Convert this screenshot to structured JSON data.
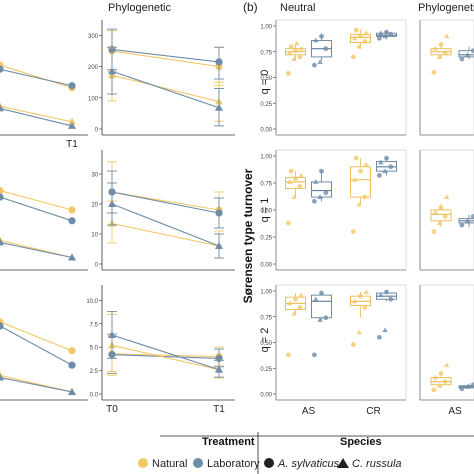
{
  "figure": {
    "panel_b_label": "(b)",
    "y_axis_title": "Sørensen type turnover",
    "column_titles": [
      "Phylogenetic",
      "Neutral",
      "Phylogenetic"
    ],
    "q_labels": [
      "q = 0",
      "q = 1",
      "q = 2"
    ],
    "colors": {
      "natural": "#F2C867",
      "laboratory": "#6E8CA8",
      "axis": "#333333",
      "box_natural": "#E9B94E",
      "box_lab": "#5F7E9C"
    }
  },
  "legend": {
    "treatment_title": "Treatment",
    "species_title": "Species",
    "natural_label": "Natural",
    "laboratory_label": "Laboratory",
    "species1_label": "A. sylvaticus",
    "species2_label": "C. russula"
  },
  "chart_data": [
    {
      "type": "line",
      "panel": "a-left-q0",
      "x": [
        "T0",
        "T1"
      ],
      "xtick_labels": [
        "",
        "T1"
      ],
      "ylim": [
        0,
        1
      ],
      "series": [
        {
          "treatment": "Natural",
          "species": "A. sylvaticus",
          "values": [
            0.62,
            0.4
          ]
        },
        {
          "treatment": "Laboratory",
          "species": "A. sylvaticus",
          "values": [
            0.58,
            0.42
          ]
        },
        {
          "treatment": "Natural",
          "species": "C. russula",
          "values": [
            0.22,
            0.07
          ]
        },
        {
          "treatment": "Laboratory",
          "species": "C. russula",
          "values": [
            0.2,
            0.03
          ]
        }
      ]
    },
    {
      "type": "line",
      "panel": "a-phylo-q0",
      "x": [
        "T0",
        "T1"
      ],
      "ylim": [
        0,
        330
      ],
      "yticks": [
        0,
        100,
        200,
        300
      ],
      "series": [
        {
          "treatment": "Natural",
          "species": "A. sylvaticus",
          "values": [
            250,
            200
          ],
          "err": [
            [
              185,
              315
            ],
            [
              140,
              262
            ]
          ]
        },
        {
          "treatment": "Laboratory",
          "species": "A. sylvaticus",
          "values": [
            255,
            215
          ],
          "err": [
            [
              190,
              320
            ],
            [
              160,
              262
            ]
          ]
        },
        {
          "treatment": "Natural",
          "species": "C. russula",
          "values": [
            172,
            88
          ],
          "err": [
            [
              90,
              260
            ],
            [
              25,
              150
            ]
          ]
        },
        {
          "treatment": "Laboratory",
          "species": "C. russula",
          "values": [
            185,
            68
          ],
          "err": [
            [
              112,
              262
            ],
            [
              10,
              130
            ]
          ]
        }
      ]
    },
    {
      "type": "line",
      "panel": "a-left-q1",
      "x": [
        "T0",
        "T1"
      ],
      "ylim": [
        0,
        1
      ],
      "series": [
        {
          "treatment": "Natural",
          "species": "A. sylvaticus",
          "values": [
            0.68,
            0.5
          ]
        },
        {
          "treatment": "Laboratory",
          "species": "A. sylvaticus",
          "values": [
            0.62,
            0.4
          ]
        },
        {
          "treatment": "Natural",
          "species": "C. russula",
          "values": [
            0.22,
            0.06
          ]
        },
        {
          "treatment": "Laboratory",
          "species": "C. russula",
          "values": [
            0.2,
            0.06
          ]
        }
      ]
    },
    {
      "type": "line",
      "panel": "a-phylo-q1",
      "x": [
        "T0",
        "T1"
      ],
      "ylim": [
        0,
        36
      ],
      "yticks": [
        0,
        10,
        20,
        30
      ],
      "series": [
        {
          "treatment": "Natural",
          "species": "A. sylvaticus",
          "values": [
            24,
            18
          ],
          "err": [
            [
              17,
              34
            ],
            [
              12,
              24
            ]
          ]
        },
        {
          "treatment": "Laboratory",
          "species": "A. sylvaticus",
          "values": [
            24,
            17
          ],
          "err": [
            [
              17,
              31
            ],
            [
              12,
              22
            ]
          ]
        },
        {
          "treatment": "Natural",
          "species": "C. russula",
          "values": [
            13.5,
            6
          ],
          "err": [
            [
              7,
              21
            ],
            [
              2,
              11
            ]
          ]
        },
        {
          "treatment": "Laboratory",
          "species": "C. russula",
          "values": [
            20,
            6
          ],
          "err": [
            [
              13,
              27
            ],
            [
              2,
              10
            ]
          ]
        }
      ]
    },
    {
      "type": "line",
      "panel": "a-left-q2",
      "x": [
        "T0",
        "T1"
      ],
      "ylim": [
        0,
        1
      ],
      "series": [
        {
          "treatment": "Natural",
          "species": "A. sylvaticus",
          "values": [
            0.7,
            0.42
          ]
        },
        {
          "treatment": "Laboratory",
          "species": "A. sylvaticus",
          "values": [
            0.66,
            0.28
          ]
        },
        {
          "treatment": "Natural",
          "species": "C. russula",
          "values": [
            0.18,
            0.02
          ]
        },
        {
          "treatment": "Laboratory",
          "species": "C. russula",
          "values": [
            0.16,
            0.02
          ]
        }
      ]
    },
    {
      "type": "line",
      "panel": "a-phylo-q2",
      "x": [
        "T0",
        "T1"
      ],
      "xtick_labels": [
        "T0",
        "T1"
      ],
      "ylim": [
        0,
        11
      ],
      "yticks": [
        0.0,
        2.5,
        5.0,
        7.5,
        10.0
      ],
      "series": [
        {
          "treatment": "Natural",
          "species": "A. sylvaticus",
          "values": [
            4.3,
            4.0
          ],
          "err": [
            [
              2.4,
              6.2
            ],
            [
              3.0,
              5.0
            ]
          ]
        },
        {
          "treatment": "Laboratory",
          "species": "A. sylvaticus",
          "values": [
            4.2,
            3.8
          ],
          "err": [
            [
              2.2,
              6.4
            ],
            [
              2.9,
              4.8
            ]
          ]
        },
        {
          "treatment": "Natural",
          "species": "C. russula",
          "values": [
            5.2,
            2.6
          ],
          "err": [
            [
              2.0,
              8.5
            ],
            [
              1.7,
              3.6
            ]
          ]
        },
        {
          "treatment": "Laboratory",
          "species": "C. russula",
          "values": [
            6.3,
            2.6
          ],
          "err": [
            [
              3.8,
              8.8
            ],
            [
              1.8,
              3.6
            ]
          ]
        }
      ]
    },
    {
      "type": "box",
      "panel": "b-neutral-q0",
      "categories": [
        "AS",
        "CR"
      ],
      "ylim": [
        0,
        1
      ],
      "yticks": [
        0.0,
        0.25,
        0.5,
        0.75,
        1.0
      ],
      "series": [
        {
          "treatment": "Natural",
          "boxes": [
            [
              0.66,
              0.72,
              0.75,
              0.78,
              0.83
            ],
            [
              0.78,
              0.84,
              0.89,
              0.92,
              0.97
            ]
          ],
          "points": [
            [
              0.54,
              0.68,
              0.7,
              0.74,
              0.76,
              0.78,
              0.8,
              0.83
            ],
            [
              0.7,
              0.8,
              0.85,
              0.88,
              0.9,
              0.93,
              0.96
            ]
          ]
        },
        {
          "treatment": "Laboratory",
          "boxes": [
            [
              0.66,
              0.7,
              0.78,
              0.86,
              0.92
            ],
            [
              0.87,
              0.9,
              0.91,
              0.93,
              0.95
            ]
          ],
          "points": [
            [
              0.62,
              0.65,
              0.78,
              0.86,
              0.9
            ],
            [
              0.88,
              0.9,
              0.92,
              0.93,
              0.94
            ]
          ]
        }
      ]
    },
    {
      "type": "box",
      "panel": "b-neutral-q1",
      "categories": [
        "AS",
        "CR"
      ],
      "ylim": [
        0,
        1
      ],
      "yticks": [
        0.0,
        0.25,
        0.5,
        0.75,
        1.0
      ],
      "series": [
        {
          "treatment": "Natural",
          "boxes": [
            [
              0.62,
              0.7,
              0.76,
              0.8,
              0.86
            ],
            [
              0.55,
              0.62,
              0.78,
              0.9,
              0.98
            ]
          ],
          "points": [
            [
              0.38,
              0.62,
              0.72,
              0.76,
              0.79,
              0.82,
              0.86
            ],
            [
              0.3,
              0.55,
              0.62,
              0.78,
              0.86,
              0.92,
              0.98
            ]
          ]
        },
        {
          "treatment": "Laboratory",
          "boxes": [
            [
              0.58,
              0.62,
              0.68,
              0.76,
              0.86
            ],
            [
              0.82,
              0.86,
              0.9,
              0.95,
              0.98
            ]
          ],
          "points": [
            [
              0.58,
              0.62,
              0.66,
              0.76,
              0.86
            ],
            [
              0.82,
              0.86,
              0.9,
              0.94,
              0.98
            ]
          ]
        }
      ]
    },
    {
      "type": "box",
      "panel": "b-neutral-q2",
      "categories": [
        "AS",
        "CR"
      ],
      "ylim": [
        0,
        1
      ],
      "yticks": [
        0.0,
        0.25,
        0.5,
        0.75,
        1.0
      ],
      "xtick_labels": [
        "AS",
        "CR"
      ],
      "series": [
        {
          "treatment": "Natural",
          "boxes": [
            [
              0.78,
              0.82,
              0.88,
              0.94,
              0.98
            ],
            [
              0.74,
              0.86,
              0.9,
              0.95,
              0.99
            ]
          ],
          "points": [
            [
              0.38,
              0.78,
              0.84,
              0.88,
              0.92,
              0.96
            ],
            [
              0.48,
              0.6,
              0.84,
              0.9,
              0.95,
              0.99
            ]
          ]
        },
        {
          "treatment": "Laboratory",
          "boxes": [
            [
              0.72,
              0.74,
              0.9,
              0.96,
              0.98
            ],
            [
              0.9,
              0.92,
              0.95,
              0.98,
              1.0
            ]
          ],
          "points": [
            [
              0.38,
              0.72,
              0.74,
              0.92,
              0.98
            ],
            [
              0.55,
              0.62,
              0.92,
              0.96,
              0.99
            ]
          ]
        }
      ]
    },
    {
      "type": "box",
      "panel": "b-phylo-q0",
      "categories": [
        "AS"
      ],
      "ylim": [
        0,
        1
      ],
      "series": [
        {
          "treatment": "Natural",
          "boxes": [
            [
              0.68,
              0.72,
              0.75,
              0.78,
              0.82
            ]
          ],
          "points": [
            [
              0.55,
              0.7,
              0.74,
              0.78,
              0.82,
              0.9
            ]
          ]
        },
        {
          "treatment": "Laboratory",
          "boxes": [
            [
              0.68,
              0.7,
              0.72,
              0.76,
              0.8
            ]
          ],
          "points": [
            [
              0.68,
              0.72,
              0.76
            ]
          ]
        }
      ]
    },
    {
      "type": "box",
      "panel": "b-phylo-q1",
      "categories": [
        "AS"
      ],
      "ylim": [
        0,
        1
      ],
      "series": [
        {
          "treatment": "Natural",
          "boxes": [
            [
              0.34,
              0.4,
              0.46,
              0.5,
              0.56
            ]
          ],
          "points": [
            [
              0.3,
              0.38,
              0.44,
              0.48,
              0.52,
              0.62
            ]
          ]
        },
        {
          "treatment": "Laboratory",
          "boxes": [
            [
              0.34,
              0.38,
              0.4,
              0.42,
              0.46
            ]
          ],
          "points": [
            [
              0.36,
              0.4,
              0.44
            ]
          ]
        }
      ]
    },
    {
      "type": "box",
      "panel": "b-phylo-q2",
      "categories": [
        "AS"
      ],
      "ylim": [
        0,
        1
      ],
      "xtick_labels": [
        "AS"
      ],
      "series": [
        {
          "treatment": "Natural",
          "boxes": [
            [
              0.06,
              0.09,
              0.12,
              0.16,
              0.22
            ]
          ],
          "points": [
            [
              0.04,
              0.08,
              0.12,
              0.16,
              0.2,
              0.28
            ]
          ]
        },
        {
          "treatment": "Laboratory",
          "boxes": [
            [
              0.05,
              0.06,
              0.07,
              0.08,
              0.1
            ]
          ],
          "points": [
            [
              0.05,
              0.07,
              0.09
            ]
          ]
        }
      ]
    }
  ]
}
